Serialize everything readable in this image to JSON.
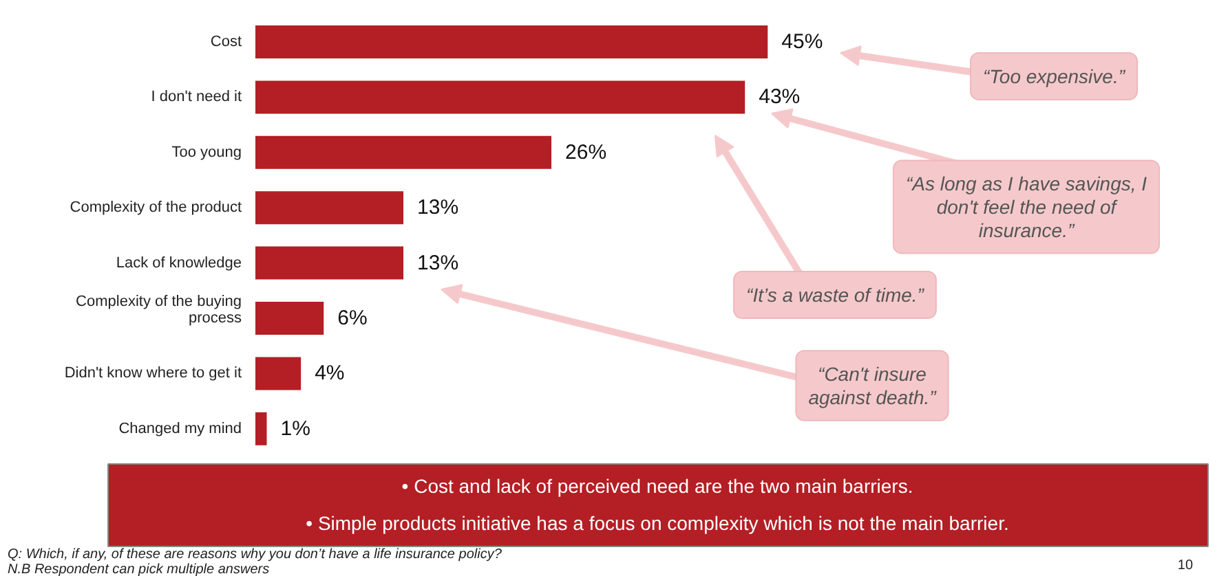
{
  "chart_data": {
    "type": "bar",
    "orientation": "horizontal",
    "categories": [
      "Cost",
      "I don't need it",
      "Too young",
      "Complexity of the product",
      "Lack of knowledge",
      "Complexity of the buying process",
      "Didn't know where to get it",
      "Changed my mind"
    ],
    "values": [
      45,
      43,
      26,
      13,
      13,
      6,
      4,
      1
    ],
    "value_labels": [
      "45%",
      "43%",
      "26%",
      "13%",
      "13%",
      "6%",
      "4%",
      "1%"
    ],
    "color": "#b31f24",
    "annotations": [
      "“Too expensive.”",
      "“As long as I have savings, I don't feel the need of insurance.”",
      "“It’s a waste of time.”",
      "“Can't insure against death.”",
      "• Cost and lack of perceived need are the two main barriers.",
      "• Simple products initiative has a focus on complexity which is not the main barrier.",
      "Q: Which, if any, of these are reasons why you don’t have a life insurance policy?",
      "N.B Respondent can pick multiple answers",
      "10"
    ]
  }
}
